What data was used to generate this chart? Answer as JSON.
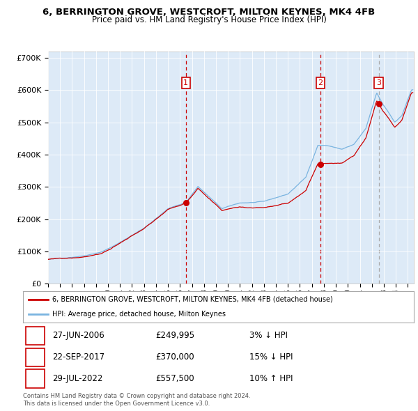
{
  "title_line1": "6, BERRINGTON GROVE, WESTCROFT, MILTON KEYNES, MK4 4FB",
  "title_line2": "Price paid vs. HM Land Registry's House Price Index (HPI)",
  "background_color": "#ddeaf7",
  "hpi_line_color": "#7ab4e0",
  "price_line_color": "#cc0000",
  "sale_dot_color": "#cc0000",
  "sale_dates_year": [
    2006.49,
    2017.72,
    2022.57
  ],
  "sale_prices": [
    249995,
    370000,
    557500
  ],
  "sale_labels": [
    "1",
    "2",
    "3"
  ],
  "legend_line1": "6, BERRINGTON GROVE, WESTCROFT, MILTON KEYNES, MK4 4FB (detached house)",
  "legend_line2": "HPI: Average price, detached house, Milton Keynes",
  "table_rows": [
    [
      "1",
      "27-JUN-2006",
      "£249,995",
      "3% ↓ HPI"
    ],
    [
      "2",
      "22-SEP-2017",
      "£370,000",
      "15% ↓ HPI"
    ],
    [
      "3",
      "29-JUL-2022",
      "£557,500",
      "10% ↑ HPI"
    ]
  ],
  "footnote1": "Contains HM Land Registry data © Crown copyright and database right 2024.",
  "footnote2": "This data is licensed under the Open Government Licence v3.0.",
  "ylim": [
    0,
    720000
  ],
  "yticks": [
    0,
    100000,
    200000,
    300000,
    400000,
    500000,
    600000,
    700000
  ],
  "ytick_labels": [
    "£0",
    "£100K",
    "£200K",
    "£300K",
    "£400K",
    "£500K",
    "£600K",
    "£700K"
  ],
  "start_year": 1995.0,
  "end_year": 2025.5
}
